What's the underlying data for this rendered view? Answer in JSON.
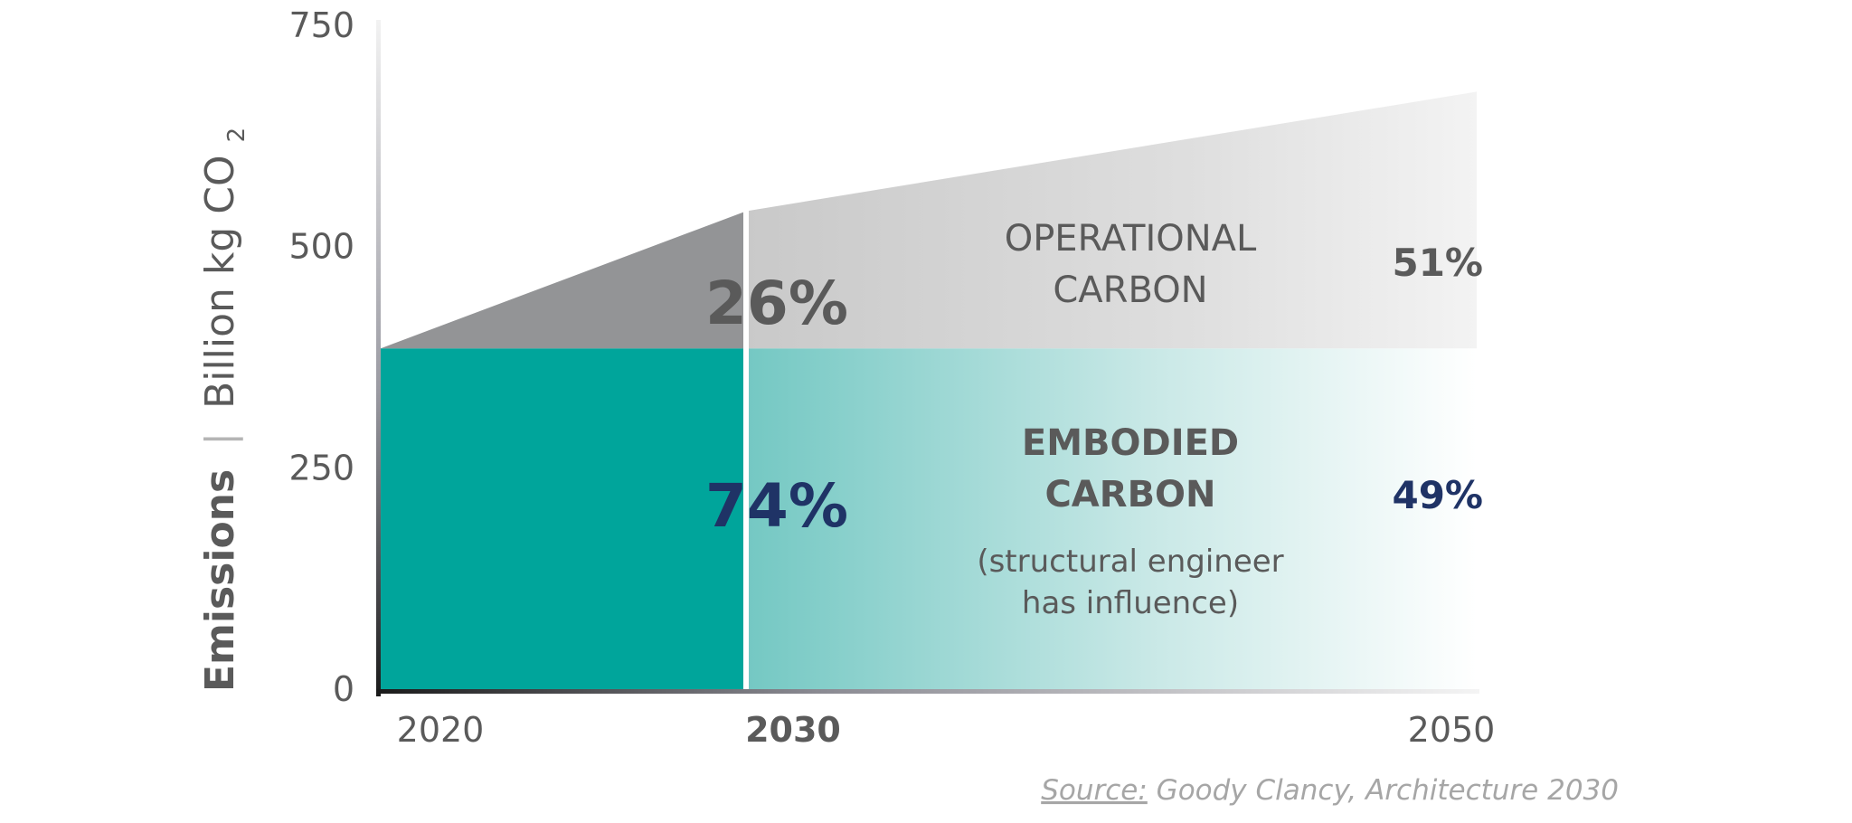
{
  "chart_data": {
    "type": "area",
    "ylabel": {
      "bold": "Emissions",
      "separator": "|",
      "text": "Billion kg CO",
      "subscript": "2"
    },
    "ylim": [
      0,
      750
    ],
    "yticks": [
      "750",
      "500",
      "250",
      "0"
    ],
    "xlim": [
      2020,
      2050
    ],
    "xticks": [
      {
        "label": "2020",
        "year": 2020,
        "bold": false
      },
      {
        "label": "2030",
        "year": 2030,
        "bold": true
      },
      {
        "label": "2050",
        "year": 2050,
        "bold": false
      }
    ],
    "marker_year": 2030,
    "series": [
      {
        "name": "OPERATIONAL CARBON",
        "x": [
          2020,
          2030,
          2050
        ],
        "values": [
          0,
          155,
          290
        ]
      },
      {
        "name": "EMBODIED CARBON",
        "x": [
          2020,
          2030,
          2050
        ],
        "values": [
          385,
          385,
          385
        ]
      }
    ],
    "regions": {
      "operational": {
        "label_line1": "OPERATIONAL",
        "label_line2": "CARBON"
      },
      "embodied": {
        "label_line1": "EMBODIED",
        "label_line2": "CARBON",
        "note_line1": "(structural engineer",
        "note_line2": "has influence)"
      }
    },
    "annotations": {
      "operational_2030": "26%",
      "embodied_2030": "74%",
      "operational_2050": "51%",
      "embodied_2050": "49%"
    },
    "grid": false,
    "legend": "none"
  },
  "source": {
    "prefix": "Source:",
    "text": " Goody Clancy, Architecture 2030"
  },
  "colors": {
    "embodied": "#00a59b",
    "operational": "#d2d2d2",
    "operational_dark": "#939496",
    "text_gray": "#5a5a5a",
    "navy": "#1f3366",
    "source_gray": "#a6a6a6"
  }
}
